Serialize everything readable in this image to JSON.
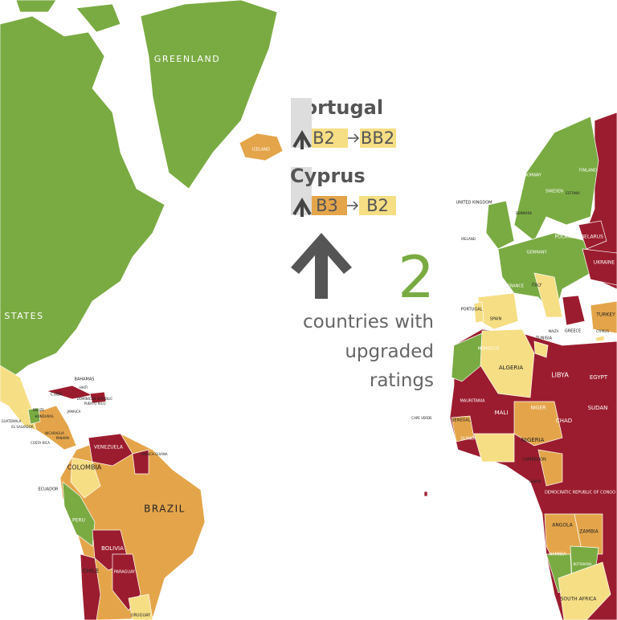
{
  "upgrades": [
    {
      "country": "Portugal",
      "from": "B2",
      "to": "BB2"
    },
    {
      "country": "Cyprus",
      "from": "B3",
      "to": "B2"
    }
  ],
  "summary": {
    "count": 2,
    "lines": [
      "countries with",
      "upgraded",
      "ratings"
    ]
  },
  "map_labels": [
    "GREENLAND",
    "ICELAND",
    "STATES",
    "BAHAMAS",
    "CUBA",
    "HAITI",
    "JAMAICA",
    "DOMINICAN REPUBLIC",
    "PUERTO RICO",
    "BELIZE",
    "HONDURAS",
    "GUATEMALA",
    "EL SALVADOR",
    "NICARAGUA",
    "COSTA RICA",
    "PANAMA",
    "VENEZUELA",
    "COLOMBIA",
    "ECUADOR",
    "PERU",
    "BRAZIL",
    "BOLIVIA",
    "CHILE",
    "PARAGUAY",
    "URUGUAY",
    "FRENCH GUIANA",
    "NORWAY",
    "SWEDEN",
    "FINLAND",
    "ESTONIA",
    "UNITED KINGDOM",
    "IRELAND",
    "DENMARK",
    "GERMANY",
    "POLAND",
    "BELARUS",
    "UKRAINE",
    "FRANCE",
    "SPAIN",
    "PORTUGAL",
    "ITALY",
    "GREECE",
    "TURKEY",
    "CYPRUS",
    "MALTA",
    "TUNISIA",
    "MOROCCO",
    "ALGERIA",
    "LIBYA",
    "EGYPT",
    "SUDAN",
    "CHAD",
    "NIGER",
    "MALI",
    "MAURITANIA",
    "SENEGAL",
    "GUINEA",
    "NIGERIA",
    "CAMEROON",
    "GABON",
    "CAPE VERDE",
    "ANGOLA",
    "ZAMBIA",
    "NAMIBIA",
    "BOTSWANA",
    "SOUTH AFRICA",
    "DEMOCRATIC REPUBLIC OF CONGO"
  ]
}
